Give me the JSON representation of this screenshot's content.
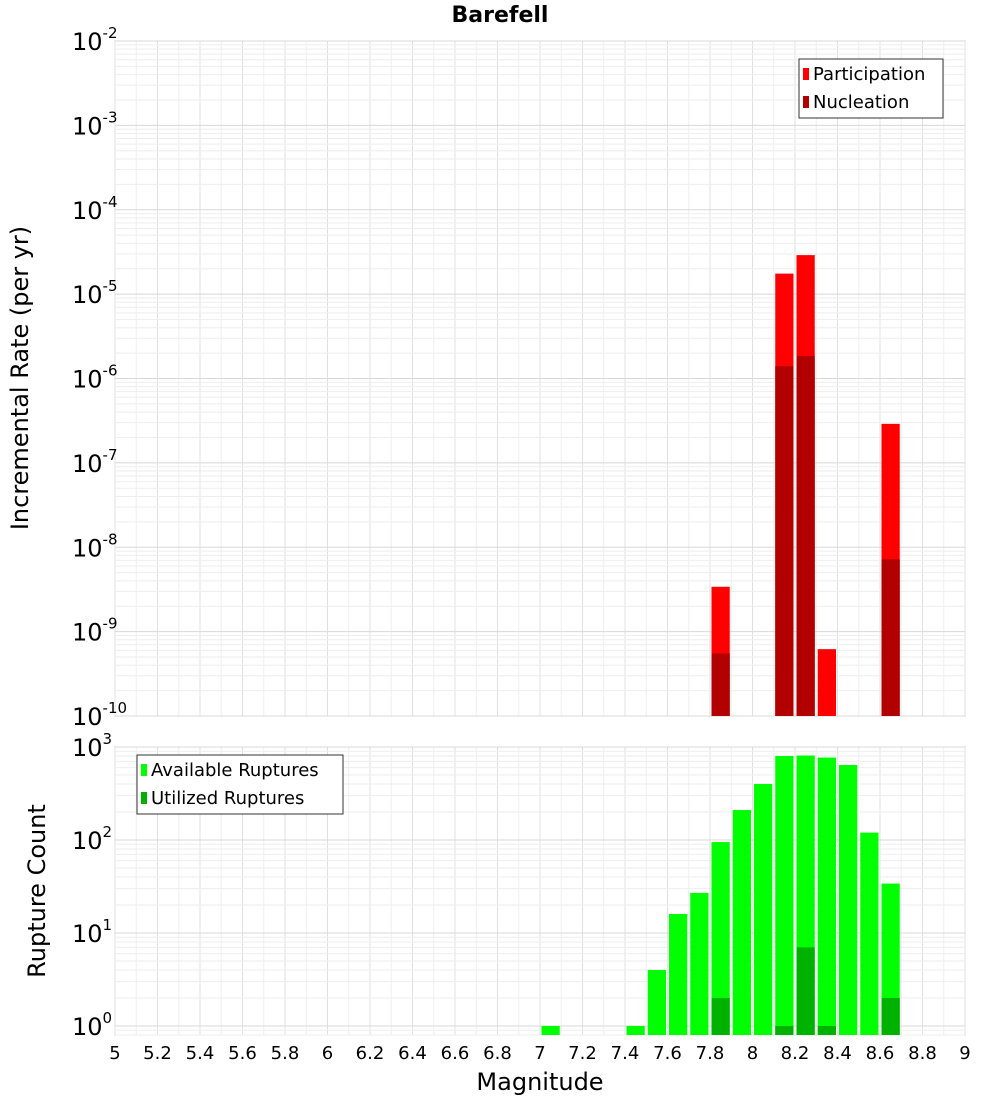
{
  "chart_data": {
    "title": "Barefell",
    "xlabel": "Magnitude",
    "xlim": [
      5,
      9
    ],
    "x_ticks": [
      "5",
      "5.2",
      "5.4",
      "5.6",
      "5.8",
      "6",
      "6.2",
      "6.4",
      "6.6",
      "6.8",
      "7",
      "7.2",
      "7.4",
      "7.6",
      "7.8",
      "8",
      "8.2",
      "8.4",
      "8.6",
      "8.8",
      "9"
    ],
    "bin_width": 0.1,
    "panels": [
      {
        "type": "bar",
        "ylabel": "Incremental Rate (per yr)",
        "yscale": "log",
        "ylim": [
          1e-10,
          0.01
        ],
        "y_tick_exponents": [
          "-10",
          "-9",
          "-8",
          "-7",
          "-6",
          "-5",
          "-4",
          "-3",
          "-2"
        ],
        "grid": true,
        "legend_position": "top-right",
        "series": [
          {
            "name": "Participation",
            "color": "#ff0000",
            "points": [
              {
                "x": 7.85,
                "y": 3.4e-09
              },
              {
                "x": 8.15,
                "y": 1.75e-05
              },
              {
                "x": 8.25,
                "y": 2.9e-05
              },
              {
                "x": 8.35,
                "y": 6.2e-10
              },
              {
                "x": 8.65,
                "y": 2.9e-07
              }
            ]
          },
          {
            "name": "Nucleation",
            "color": "#b20000",
            "points": [
              {
                "x": 7.85,
                "y": 5.5e-10
              },
              {
                "x": 8.15,
                "y": 1.4e-06
              },
              {
                "x": 8.25,
                "y": 1.85e-06
              },
              {
                "x": 8.65,
                "y": 7.2e-09
              }
            ]
          }
        ]
      },
      {
        "type": "bar",
        "ylabel": "Rupture Count",
        "yscale": "log",
        "ylim": [
          0.8,
          1000
        ],
        "y_tick_exponents": [
          "0",
          "1",
          "2",
          "3"
        ],
        "grid": true,
        "legend_position": "top-left",
        "series": [
          {
            "name": "Available Ruptures",
            "color": "#00ff00",
            "points": [
              {
                "x": 7.05,
                "y": 1
              },
              {
                "x": 7.45,
                "y": 1
              },
              {
                "x": 7.55,
                "y": 4
              },
              {
                "x": 7.65,
                "y": 16
              },
              {
                "x": 7.75,
                "y": 27
              },
              {
                "x": 7.85,
                "y": 95
              },
              {
                "x": 7.95,
                "y": 210
              },
              {
                "x": 8.05,
                "y": 400
              },
              {
                "x": 8.15,
                "y": 800
              },
              {
                "x": 8.25,
                "y": 810
              },
              {
                "x": 8.35,
                "y": 770
              },
              {
                "x": 8.45,
                "y": 640
              },
              {
                "x": 8.55,
                "y": 120
              },
              {
                "x": 8.65,
                "y": 34
              }
            ]
          },
          {
            "name": "Utilized Ruptures",
            "color": "#00b200",
            "points": [
              {
                "x": 7.85,
                "y": 2
              },
              {
                "x": 8.15,
                "y": 1
              },
              {
                "x": 8.25,
                "y": 7
              },
              {
                "x": 8.35,
                "y": 1
              },
              {
                "x": 8.65,
                "y": 2
              }
            ]
          }
        ]
      }
    ]
  }
}
